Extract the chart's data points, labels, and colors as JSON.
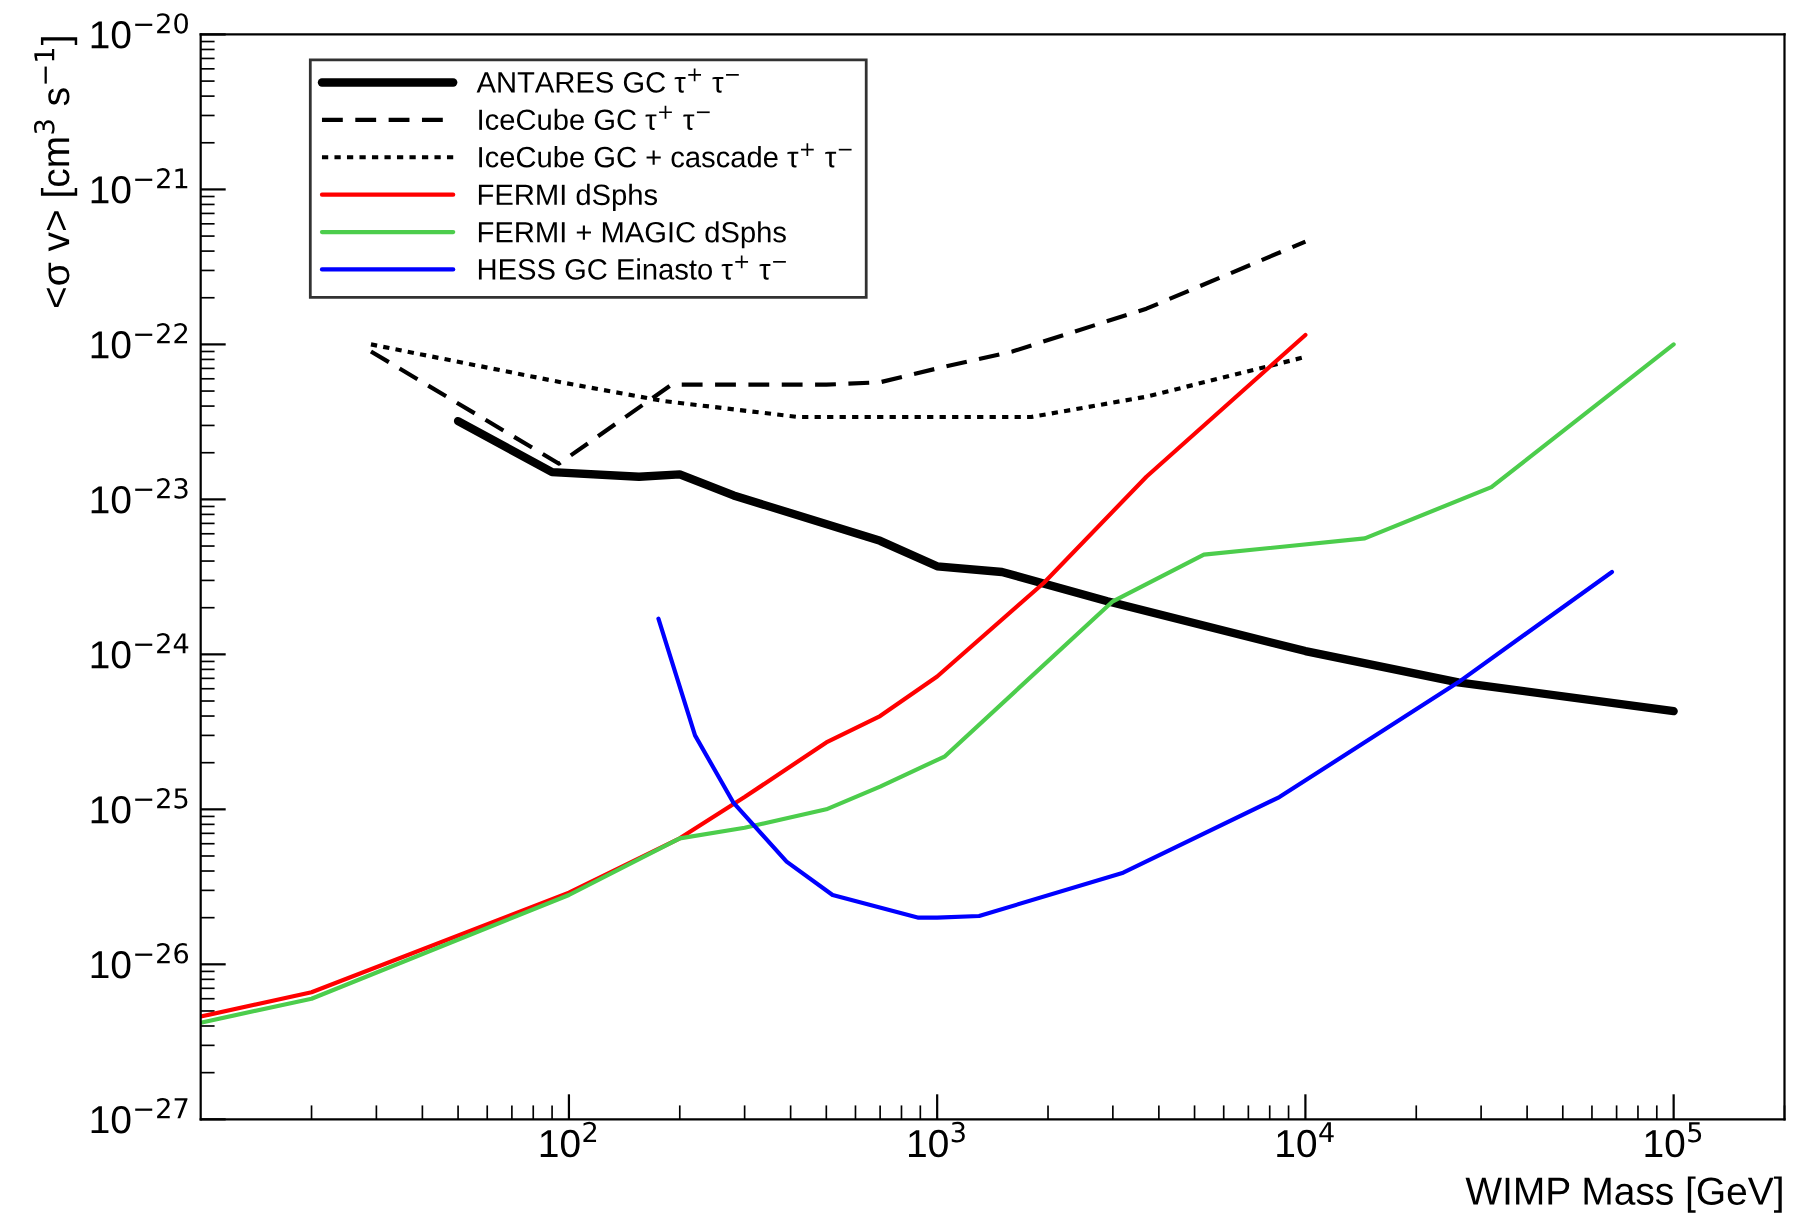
{
  "chart_data": {
    "type": "line",
    "xlabel": "WIMP Mass [GeV]",
    "ylabel": "<σ v> [cm$^{3}$ s$^{−1}$]",
    "log": "xy",
    "grid": false,
    "legend": "top left",
    "xlim": [
      10,
      200000
    ],
    "xticks": [
      {
        "value": 100,
        "label": "10$^{2}$"
      },
      {
        "value": 1000,
        "label": "10$^{3}$"
      },
      {
        "value": 10000,
        "label": "10$^{4}$"
      },
      {
        "value": 100000,
        "label": "10$^{5}$"
      }
    ],
    "ylim": [
      1e-27,
      1e-20
    ],
    "yticks": [
      {
        "value": 1e-27,
        "label": "10$^{−27}$"
      },
      {
        "value": 1e-26,
        "label": "10$^{−26}$"
      },
      {
        "value": 1e-25,
        "label": "10$^{−25}$"
      },
      {
        "value": 1e-24,
        "label": "10$^{−24}$"
      },
      {
        "value": 1e-23,
        "label": "10$^{−23}$"
      },
      {
        "value": 1e-22,
        "label": "10$^{−22}$"
      },
      {
        "value": 1e-21,
        "label": "10$^{−21}$"
      },
      {
        "value": 1e-20,
        "label": "10$^{−20}$"
      }
    ],
    "series": [
      {
        "name": "ANTARES GC τ$^{+}$ τ$^{−}$",
        "color": "#000000",
        "line_style": "solid",
        "x": [
          50,
          90,
          155,
          200,
          280,
          700,
          1000,
          1500,
          2900,
          10000,
          26000,
          100000
        ],
        "values": [
          3.2e-23,
          1.5e-23,
          1.4e-23,
          1.45e-23,
          1.06e-23,
          5.4e-24,
          3.7e-24,
          3.4e-24,
          2.2e-24,
          1.05e-24,
          6.6e-25,
          4.3e-25
        ]
      },
      {
        "name": "IceCube GC τ$^{+}$ τ$^{−}$",
        "color": "#000000",
        "line_style": "dashed",
        "x": [
          29,
          94,
          190,
          500,
          700,
          1000,
          1600,
          3700,
          10000
        ],
        "values": [
          9e-23,
          1.7e-23,
          5.5e-23,
          5.5e-23,
          5.7e-23,
          7e-23,
          9e-23,
          1.7e-22,
          4.6e-22
        ]
      },
      {
        "name": "IceCube GC + cascade τ$^{+}$ τ$^{−}$",
        "color": "#000000",
        "line_style": "dotted",
        "x": [
          29,
          95,
          182,
          420,
          700,
          1800,
          3700,
          10000
        ],
        "values": [
          1e-22,
          5.7e-23,
          4.3e-23,
          3.4e-23,
          3.4e-23,
          3.4e-23,
          4.6e-23,
          8.3e-23
        ]
      },
      {
        "name": "FERMI dSphs",
        "color": "#ff0000",
        "line_style": "solid",
        "x": [
          10,
          20,
          100,
          200,
          300,
          500,
          700,
          1000,
          1950,
          3700,
          10000
        ],
        "values": [
          4.6e-27,
          6.6e-27,
          2.9e-26,
          6.5e-26,
          1.2e-25,
          2.7e-25,
          4e-25,
          7.2e-25,
          2.9e-24,
          1.4e-23,
          1.15e-22
        ]
      },
      {
        "name": "FERMI + MAGIC dSphs",
        "color": "#4ccd4c",
        "line_style": "solid",
        "x": [
          10,
          20,
          100,
          200,
          300,
          500,
          700,
          1050,
          3000,
          5300,
          14500,
          32000,
          100000
        ],
        "values": [
          4.2e-27,
          6e-27,
          2.8e-26,
          6.5e-26,
          7.6e-26,
          1e-25,
          1.4e-25,
          2.2e-25,
          2.2e-24,
          4.4e-24,
          5.6e-24,
          1.2e-23,
          1e-22
        ]
      },
      {
        "name": "HESS GC Einasto τ$^{+}$ τ$^{−}$",
        "color": "#0000ff",
        "line_style": "solid",
        "x": [
          175,
          220,
          280,
          390,
          520,
          890,
          1000,
          1300,
          3200,
          8500,
          26000,
          68000
        ],
        "values": [
          1.7e-24,
          3e-25,
          1.1e-25,
          4.6e-26,
          2.8e-26,
          2e-26,
          2e-26,
          2.05e-26,
          3.9e-26,
          1.2e-25,
          6.6e-25,
          3.4e-24
        ]
      }
    ]
  }
}
